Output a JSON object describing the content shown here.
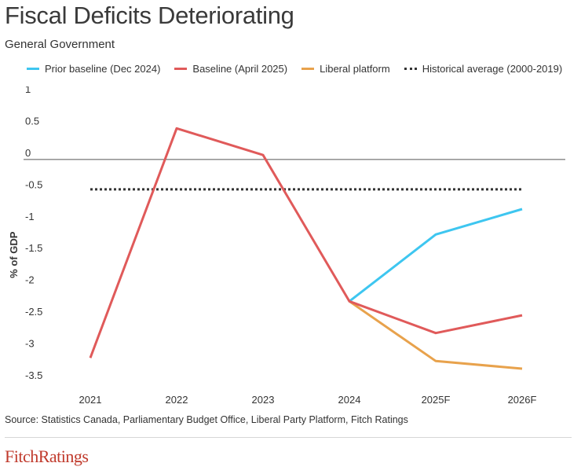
{
  "title": "Fiscal Deficits Deteriorating",
  "subtitle": "General Government",
  "source": "Source: Statistics Canada, Parliamentary Budget Office, Liberal Party Platform, Fitch Ratings",
  "logo": "FitchRatings",
  "colors": {
    "prior": "#3ec6f0",
    "baseline": "#e05a5a",
    "liberal": "#e8a24c",
    "historical": "#333333",
    "logo": "#c0392b"
  },
  "chart_data": {
    "type": "line",
    "title": "Fiscal Deficits Deteriorating",
    "subtitle": "General Government",
    "ylabel": "% of GDP",
    "xlabel": "",
    "categories": [
      "2021",
      "2022",
      "2023",
      "2024",
      "2025F",
      "2026F"
    ],
    "ylim": [
      -3.5,
      1
    ],
    "yticks": [
      1,
      0.5,
      0,
      -0.5,
      -1,
      -1.5,
      -2,
      -2.5,
      -3,
      -3.5
    ],
    "ytick_labels": [
      "1",
      "0.5",
      "0",
      "-0.5",
      "-1",
      "-1.5",
      "-2",
      "-2.5",
      "-3",
      "-3.5"
    ],
    "legend_position": "top",
    "grid": false,
    "series": [
      {
        "name": "Prior baseline (Dec 2024)",
        "color": "#3ec6f0",
        "style": "solid",
        "values": [
          null,
          null,
          null,
          -2.23,
          -1.18,
          -0.78
        ]
      },
      {
        "name": "Baseline (April 2025)",
        "color": "#e05a5a",
        "style": "solid",
        "values": [
          -3.12,
          0.49,
          0.07,
          -2.23,
          -2.73,
          -2.45
        ]
      },
      {
        "name": "Liberal platform",
        "color": "#e8a24c",
        "style": "solid",
        "values": [
          null,
          null,
          null,
          -2.23,
          -3.17,
          -3.29
        ]
      },
      {
        "name": "Historical average (2000-2019)",
        "color": "#333333",
        "style": "dotted",
        "values": [
          -0.47,
          -0.47,
          -0.47,
          -0.47,
          -0.47,
          -0.47
        ]
      }
    ]
  }
}
